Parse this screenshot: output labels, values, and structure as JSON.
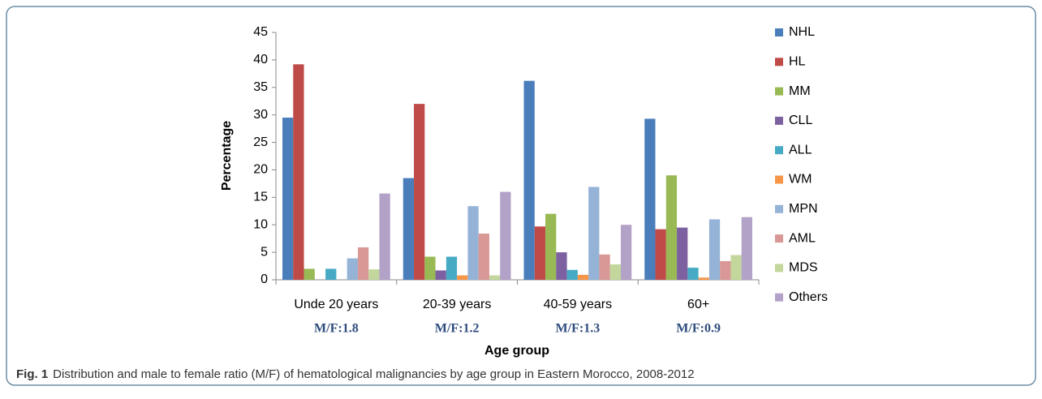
{
  "chart_data": {
    "type": "bar",
    "xlabel": "Age group",
    "ylabel": "Percentage",
    "categories": [
      "Unde 20 years",
      "20-39 years",
      "40-59 years",
      "60+"
    ],
    "annotations": [
      "M/F:1.8",
      "M/F:1.2",
      "M/F:1.3",
      "M/F:0.9"
    ],
    "series": [
      {
        "name": "NHL",
        "color": "#4a7ebb",
        "values": [
          29.5,
          18.5,
          36.2,
          29.3
        ]
      },
      {
        "name": "HL",
        "color": "#be4b48",
        "values": [
          39.2,
          32,
          9.7,
          9.2
        ]
      },
      {
        "name": "MM",
        "color": "#98b954",
        "values": [
          2,
          4.2,
          12,
          19
        ]
      },
      {
        "name": "CLL",
        "color": "#7d60a0",
        "values": [
          0,
          1.7,
          5,
          9.5
        ]
      },
      {
        "name": "ALL",
        "color": "#46aac5",
        "values": [
          2,
          4.2,
          1.8,
          2.2
        ]
      },
      {
        "name": "WM",
        "color": "#f79646",
        "values": [
          0,
          0.8,
          0.9,
          0.4
        ]
      },
      {
        "name": "MPN",
        "color": "#95b3d7",
        "values": [
          3.9,
          13.4,
          16.9,
          11
        ]
      },
      {
        "name": "AML",
        "color": "#d99795",
        "values": [
          5.9,
          8.4,
          4.6,
          3.4
        ]
      },
      {
        "name": "MDS",
        "color": "#c3d69b",
        "values": [
          1.9,
          0.8,
          2.8,
          4.5
        ]
      },
      {
        "name": "Others",
        "color": "#b3a2c7",
        "values": [
          15.7,
          16,
          10,
          11.4
        ]
      }
    ],
    "ylim": [
      0,
      45
    ],
    "yticks": [
      0,
      5,
      10,
      15,
      20,
      25,
      30,
      35,
      40,
      45
    ],
    "grid": false,
    "legend": "right"
  },
  "caption": {
    "label": "Fig. 1",
    "text": "Distribution and male to female ratio (M/F) of hematological malignancies by age group in Eastern Morocco, 2008-2012"
  }
}
